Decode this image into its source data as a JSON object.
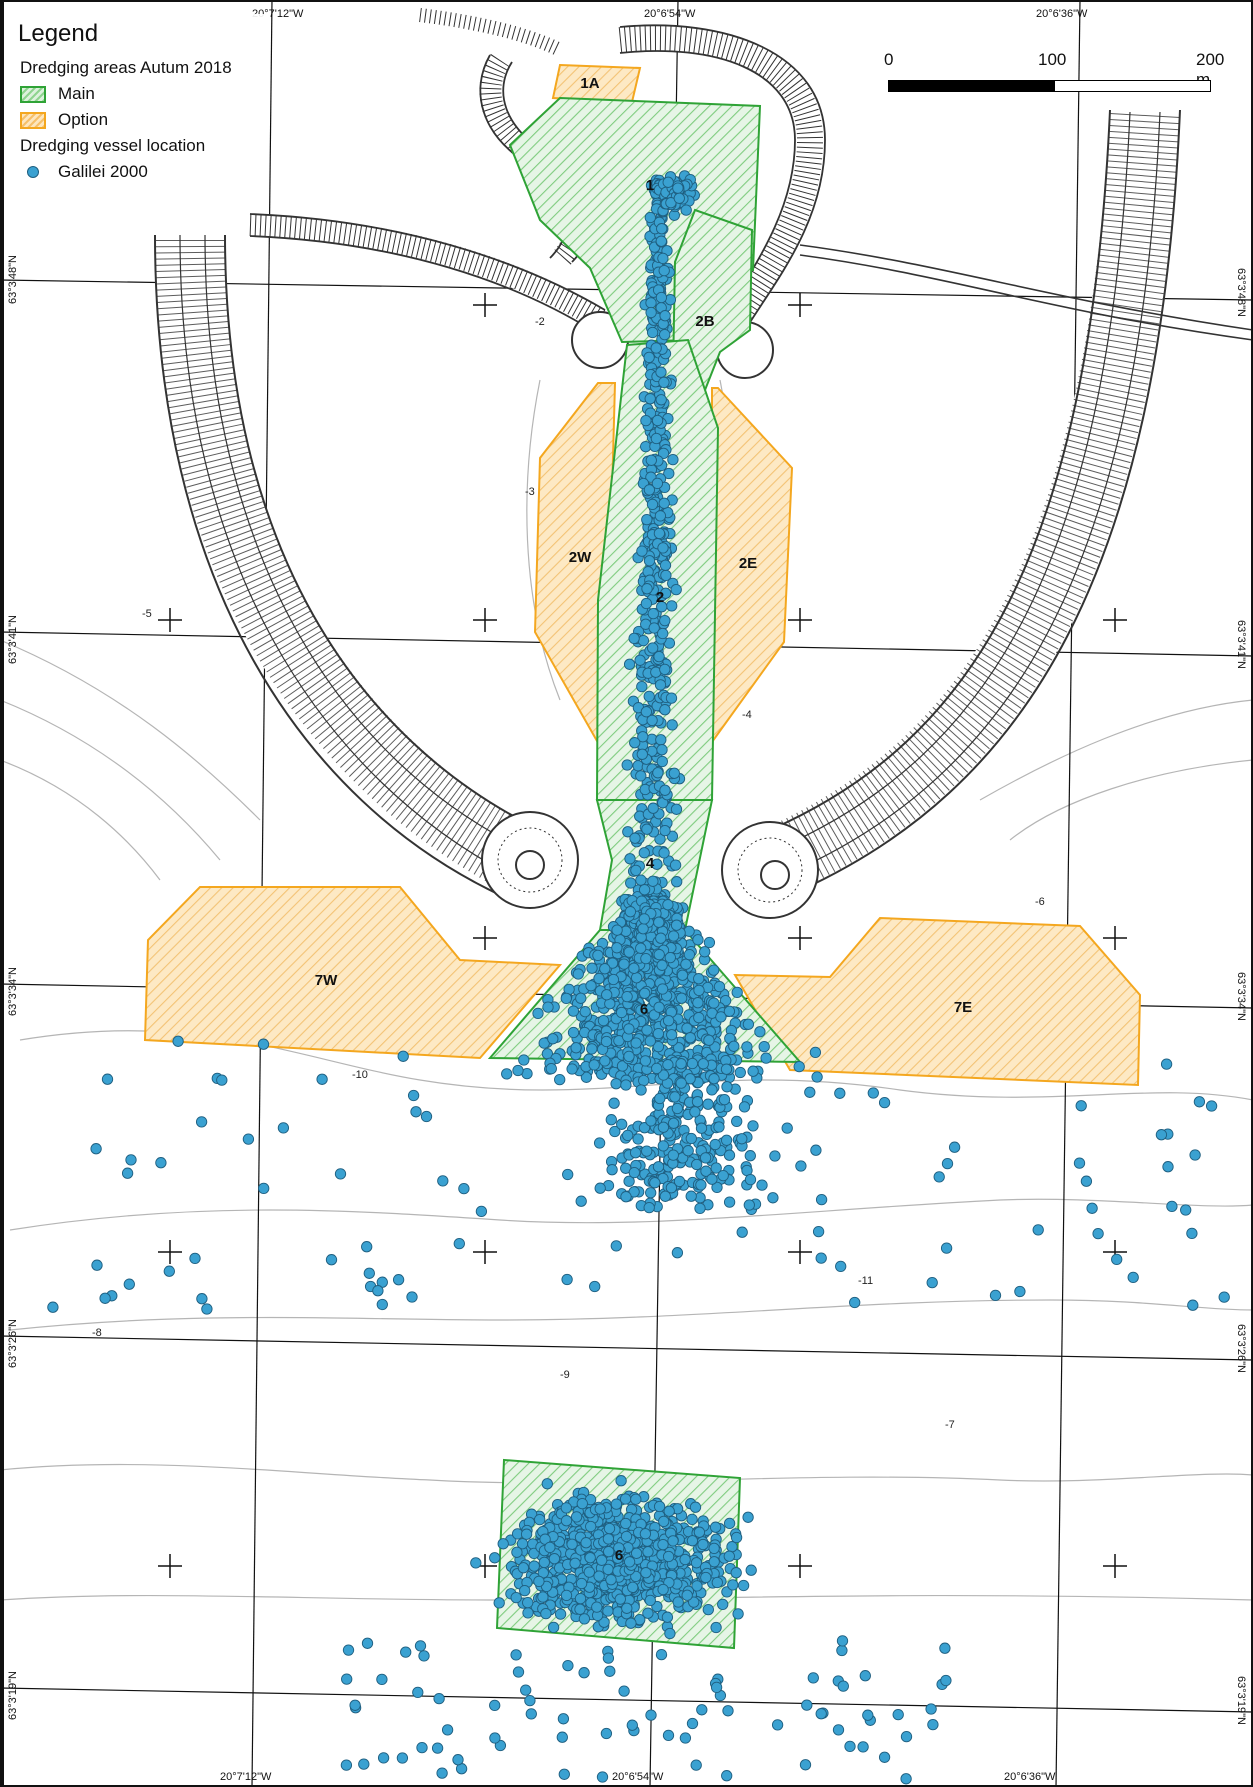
{
  "legend": {
    "title": "Legend",
    "section_areas": "Dredging areas Autum 2018",
    "main_label": "Main",
    "option_label": "Option",
    "section_vessel": "Dredging vessel location",
    "vessel_label": "Galilei 2000"
  },
  "scale_bar": {
    "tick_0": "0",
    "tick_1": "100",
    "tick_2": "200 m"
  },
  "graticule": {
    "top_lon": [
      "20°7'12\"W",
      "20°6'54\"W",
      "20°6'36\"W"
    ],
    "bottom_lon": [
      "20°7'12\"W",
      "20°6'54\"W",
      "20°6'36\"W"
    ],
    "left_lat": [
      "63°3'48\"N",
      "63°3'41\"N",
      "63°3'34\"N",
      "63°3'26\"N",
      "63°3'19\"N"
    ],
    "right_lat": [
      "63°3'48\"N",
      "63°3'41\"N",
      "63°3'34\"N",
      "63°3'26\"N",
      "63°3'19\"N"
    ]
  },
  "areas": {
    "main": [
      "1",
      "2B",
      "2",
      "4",
      "6"
    ],
    "option": [
      "1A",
      "2W",
      "2E",
      "7W",
      "7E"
    ],
    "dump_site": "6"
  },
  "depth_labels": [
    "-2",
    "-3",
    "-4",
    "-5",
    "-6",
    "-7",
    "-8",
    "-9",
    "-10",
    "-11"
  ],
  "colors": {
    "main_fill": "#8fd48f",
    "main_stroke": "#2fa336",
    "option_fill": "#f6c06a",
    "option_stroke": "#f4a71f",
    "vessel_dot": "#3aa1d1",
    "vessel_stroke": "#1f5f80",
    "breakwater": "#333333",
    "contour": "#b5b5b5"
  }
}
